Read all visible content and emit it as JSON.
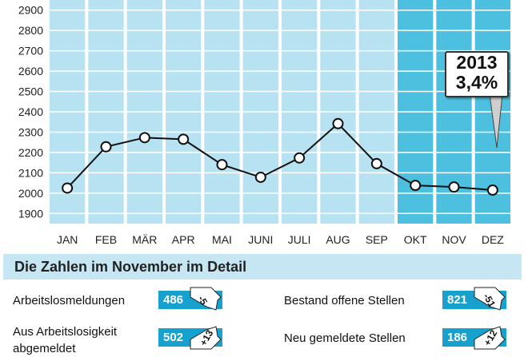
{
  "chart_data": {
    "type": "line",
    "categories": [
      "JAN",
      "FEB",
      "MÄR",
      "APR",
      "MAI",
      "JUNI",
      "JULI",
      "AUG",
      "SEP",
      "OKT",
      "NOV",
      "DEZ"
    ],
    "values": [
      2025,
      2228,
      2273,
      2265,
      2140,
      2078,
      2173,
      2342,
      2145,
      2038,
      2030,
      2015
    ],
    "ylim": [
      1850,
      2950
    ],
    "yticks": [
      1900,
      2000,
      2100,
      2200,
      2300,
      2400,
      2500,
      2600,
      2700,
      2800,
      2900
    ],
    "highlighted_categories": [
      "OKT",
      "NOV",
      "DEZ"
    ],
    "colors": {
      "column": "#b7e2f2",
      "column_highlight": "#4cc0de",
      "grid": "#ffffff",
      "line": "#111111",
      "marker_fill": "#ffffff"
    }
  },
  "callout": {
    "year": "2013",
    "rate": "3,4%"
  },
  "detail": {
    "title": "Die Zahlen im November im Detail",
    "badge_color": "#17a1cf",
    "items": [
      {
        "label": "Arbeitslosmeldungen",
        "value": "486",
        "delta": "-5",
        "direction": "down"
      },
      {
        "label": "Aus Arbeitslosigkeit abgemeldet",
        "value": "502",
        "delta": "+13",
        "direction": "up"
      },
      {
        "label": "Bestand offene Stellen",
        "value": "821",
        "delta": "-51",
        "direction": "down"
      },
      {
        "label": "Neu gemeldete Stellen",
        "value": "186",
        "delta": "+12",
        "direction": "up"
      }
    ]
  }
}
